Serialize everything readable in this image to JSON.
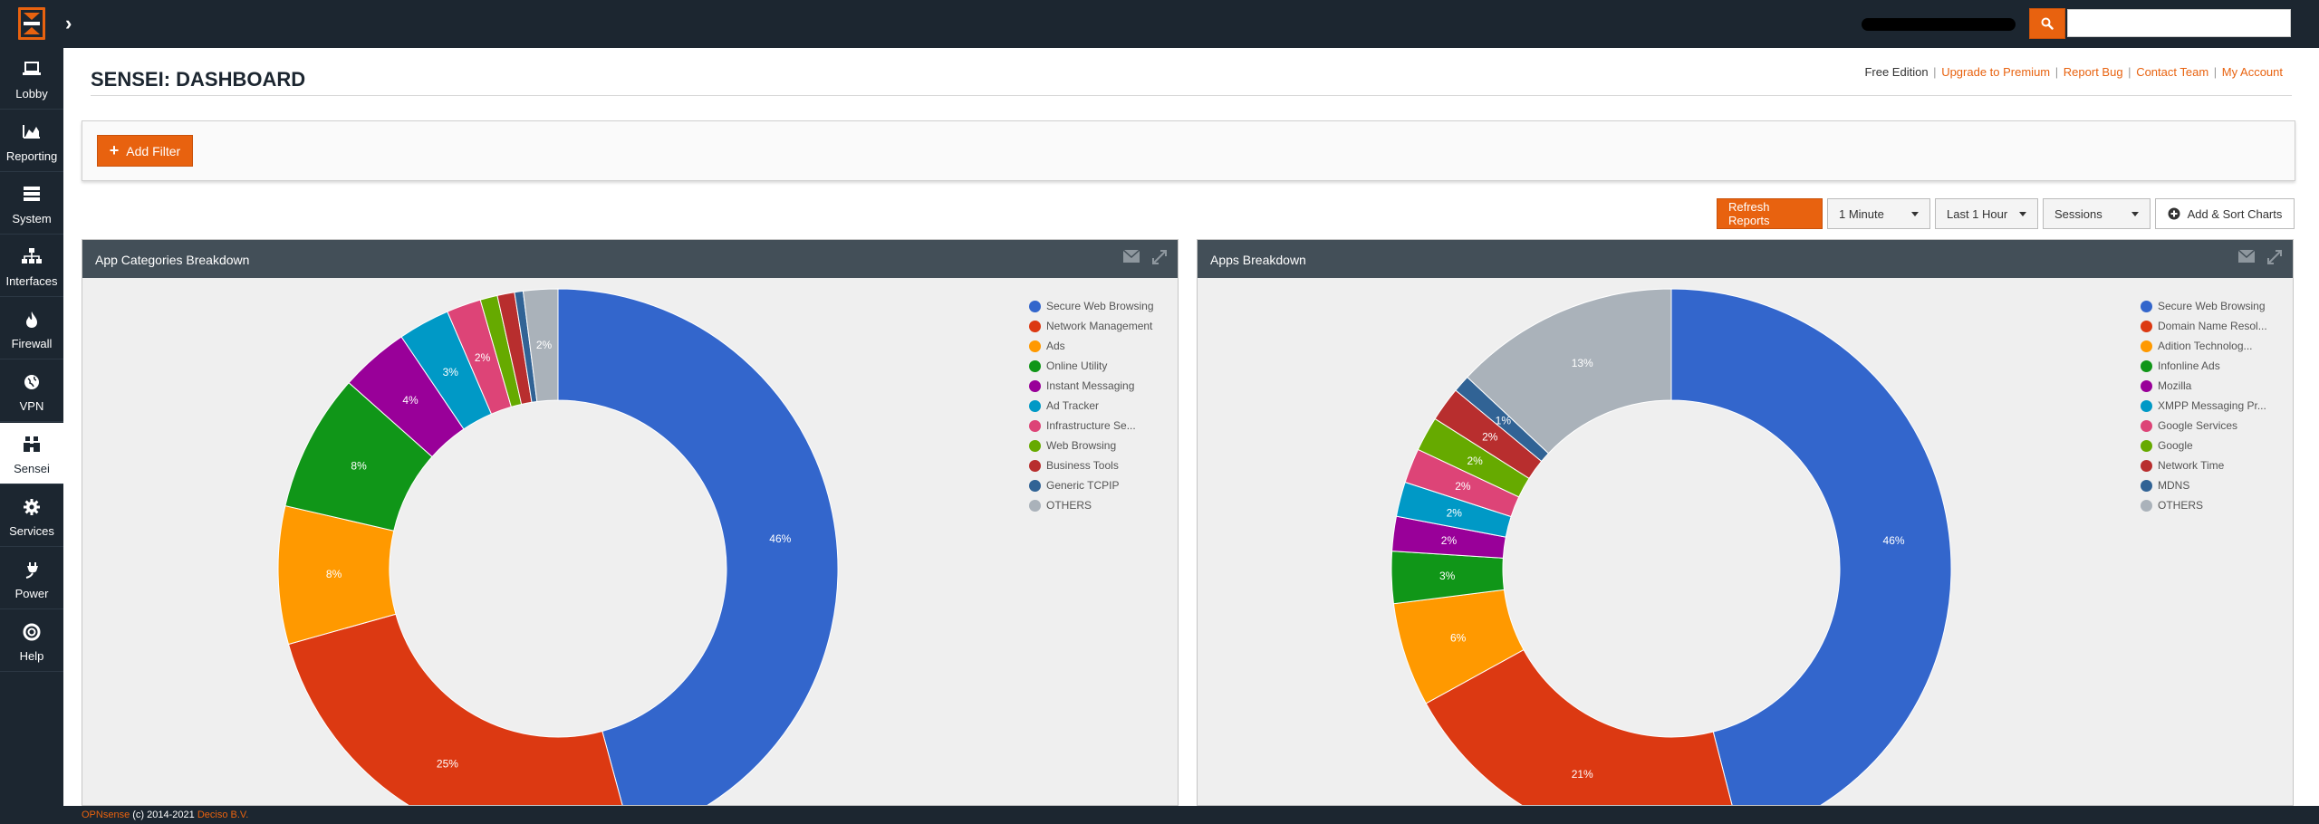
{
  "header": {
    "search": {
      "value": "",
      "placeholder": ""
    }
  },
  "sidebar": {
    "items": [
      {
        "label": "Lobby",
        "icon": "laptop-icon"
      },
      {
        "label": "Reporting",
        "icon": "area-chart-icon"
      },
      {
        "label": "System",
        "icon": "server-icon"
      },
      {
        "label": "Interfaces",
        "icon": "sitemap-icon"
      },
      {
        "label": "Firewall",
        "icon": "fire-icon"
      },
      {
        "label": "VPN",
        "icon": "globe-icon"
      },
      {
        "label": "Sensei",
        "icon": "binoculars-icon",
        "active": true
      },
      {
        "label": "Services",
        "icon": "cog-icon"
      },
      {
        "label": "Power",
        "icon": "plug-icon"
      },
      {
        "label": "Help",
        "icon": "life-ring-icon"
      }
    ]
  },
  "page": {
    "title": "SENSEI: DASHBOARD",
    "edition": "Free Edition",
    "links": [
      "Upgrade to Premium",
      "Report Bug",
      "Contact Team",
      "My Account"
    ]
  },
  "filters": {
    "add_label": "Add Filter"
  },
  "toolbar": {
    "refresh_label": "Refresh Reports",
    "interval": "1 Minute",
    "range": "Last 1 Hour",
    "metric": "Sessions",
    "add_sort_label": "Add & Sort Charts"
  },
  "colors": {
    "accent": "#e8620f",
    "nav_bg": "#1c2630",
    "panel_header": "#434f58",
    "panel_bg": "#efefef"
  },
  "chart_data": [
    {
      "type": "pie",
      "title": "App Categories Breakdown",
      "categories": [
        "Secure Web Browsing",
        "Network Management",
        "Ads",
        "Online Utility",
        "Instant Messaging",
        "Ad Tracker",
        "Infrastructure Se...",
        "Web Browsing",
        "Business Tools",
        "Generic TCPIP",
        "OTHERS"
      ],
      "values": [
        46,
        25,
        8,
        8,
        4,
        3,
        2,
        1,
        1,
        0.5,
        2
      ],
      "labels": [
        "46%",
        "25%",
        "8%",
        "8%",
        "4%",
        "3%",
        "2%",
        "",
        "",
        "",
        "2%"
      ],
      "colors": [
        "#3366cc",
        "#dc3912",
        "#ff9900",
        "#109618",
        "#990099",
        "#0099c6",
        "#dd4477",
        "#66aa00",
        "#b82e2e",
        "#316395",
        "#aab2ba"
      ],
      "legend_position": "top-right"
    },
    {
      "type": "pie",
      "title": "Apps Breakdown",
      "categories": [
        "Secure Web Browsing",
        "Domain Name Resol...",
        "Adition Technolog...",
        "Infonline Ads",
        "Mozilla",
        "XMPP Messaging Pr...",
        "Google Services",
        "Google",
        "Network Time",
        "MDNS",
        "OTHERS"
      ],
      "values": [
        46,
        21,
        6,
        3,
        2,
        2,
        2,
        2,
        2,
        1,
        13
      ],
      "labels": [
        "46%",
        "21%",
        "6%",
        "3%",
        "2%",
        "2%",
        "2%",
        "2%",
        "2%",
        "1%",
        "13%"
      ],
      "colors": [
        "#3366cc",
        "#dc3912",
        "#ff9900",
        "#109618",
        "#990099",
        "#0099c6",
        "#dd4477",
        "#66aa00",
        "#b82e2e",
        "#316395",
        "#aab2ba"
      ],
      "legend_position": "top-right"
    }
  ],
  "footer": {
    "brand": "OPNsense",
    "copyright": " (c) 2014-2021 ",
    "company": "Deciso B.V."
  }
}
